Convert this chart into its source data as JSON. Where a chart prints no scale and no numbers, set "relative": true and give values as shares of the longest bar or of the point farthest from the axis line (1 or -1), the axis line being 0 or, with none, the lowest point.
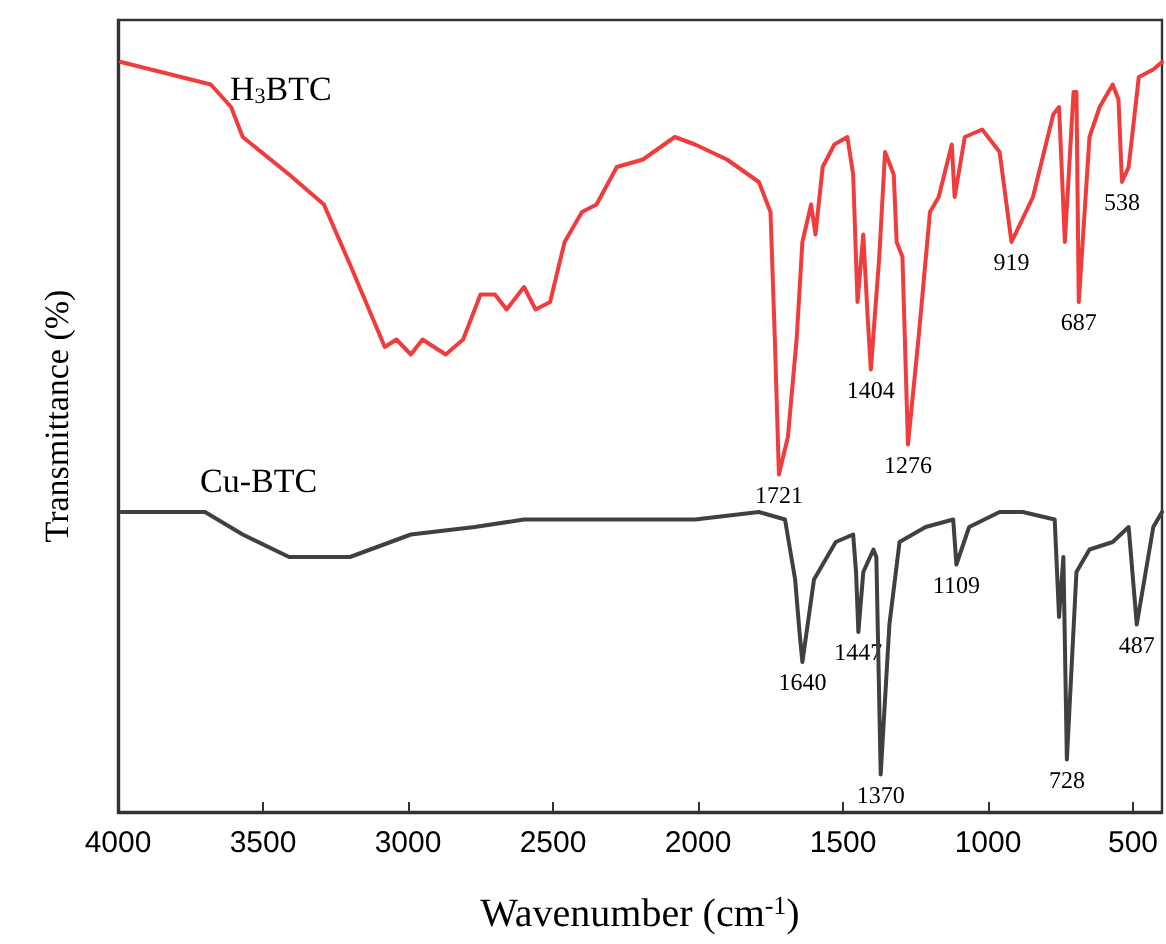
{
  "chart_data": {
    "type": "line",
    "relative": true,
    "xlabel": "Wavenumber (cm$^{-1}$)",
    "ylabel": "Transmittance (%)",
    "xlim": [
      4000,
      400
    ],
    "xticks": [
      4000,
      3500,
      3000,
      2500,
      2000,
      1500,
      1000,
      500
    ],
    "grid": false,
    "legend": false,
    "marker": "none",
    "line_style": "solid",
    "series": [
      {
        "name": "H$_{3}$BTC",
        "color": "#f03c3c",
        "x": [
          3990,
          3680,
          3610,
          3570,
          3410,
          3290,
          3200,
          3080,
          3040,
          2990,
          2950,
          2870,
          2810,
          2750,
          2700,
          2660,
          2600,
          2560,
          2510,
          2460,
          2400,
          2350,
          2280,
          2190,
          2080,
          2010,
          1900,
          1790,
          1750,
          1735,
          1721,
          1690,
          1660,
          1640,
          1610,
          1595,
          1570,
          1530,
          1485,
          1465,
          1450,
          1430,
          1415,
          1404,
          1375,
          1355,
          1325,
          1315,
          1295,
          1276,
          1240,
          1200,
          1170,
          1125,
          1115,
          1080,
          1020,
          960,
          919,
          845,
          775,
          755,
          735,
          705,
          695,
          687,
          650,
          615,
          570,
          550,
          538,
          515,
          480,
          430,
          400
        ],
        "values": [
          1.0,
          0.97,
          0.94,
          0.9,
          0.85,
          0.81,
          0.73,
          0.62,
          0.63,
          0.61,
          0.63,
          0.61,
          0.63,
          0.69,
          0.69,
          0.67,
          0.7,
          0.67,
          0.68,
          0.76,
          0.8,
          0.81,
          0.86,
          0.87,
          0.9,
          0.89,
          0.87,
          0.84,
          0.8,
          0.63,
          0.45,
          0.5,
          0.63,
          0.76,
          0.81,
          0.77,
          0.86,
          0.89,
          0.9,
          0.85,
          0.68,
          0.77,
          0.66,
          0.59,
          0.74,
          0.88,
          0.85,
          0.76,
          0.74,
          0.49,
          0.63,
          0.8,
          0.82,
          0.89,
          0.82,
          0.9,
          0.91,
          0.88,
          0.76,
          0.82,
          0.93,
          0.94,
          0.76,
          0.96,
          0.96,
          0.68,
          0.9,
          0.94,
          0.97,
          0.95,
          0.84,
          0.86,
          0.98,
          0.99,
          1.0
        ]
      },
      {
        "name": "Cu-BTC",
        "color": "#404040",
        "x": [
          3990,
          3700,
          3570,
          3410,
          3200,
          2990,
          2770,
          2600,
          2240,
          2010,
          1790,
          1700,
          1665,
          1650,
          1640,
          1600,
          1525,
          1465,
          1455,
          1447,
          1430,
          1395,
          1385,
          1370,
          1340,
          1305,
          1215,
          1120,
          1109,
          1065,
          960,
          880,
          770,
          755,
          740,
          728,
          695,
          650,
          570,
          515,
          487,
          430,
          400
        ],
        "values": [
          0.4,
          0.4,
          0.37,
          0.34,
          0.34,
          0.37,
          0.38,
          0.39,
          0.39,
          0.39,
          0.4,
          0.39,
          0.31,
          0.24,
          0.2,
          0.31,
          0.36,
          0.37,
          0.32,
          0.24,
          0.32,
          0.35,
          0.34,
          0.05,
          0.25,
          0.36,
          0.38,
          0.39,
          0.33,
          0.38,
          0.4,
          0.4,
          0.39,
          0.26,
          0.34,
          0.07,
          0.32,
          0.35,
          0.36,
          0.38,
          0.25,
          0.38,
          0.4
        ]
      }
    ],
    "annotations": [
      {
        "text": "1721",
        "x": 1721,
        "y": 0.45
      },
      {
        "text": "1404",
        "x": 1404,
        "y": 0.59
      },
      {
        "text": "1276",
        "x": 1276,
        "y": 0.49
      },
      {
        "text": "919",
        "x": 919,
        "y": 0.76
      },
      {
        "text": "687",
        "x": 687,
        "y": 0.68
      },
      {
        "text": "538",
        "x": 538,
        "y": 0.84
      },
      {
        "text": "1640",
        "x": 1640,
        "y": 0.2
      },
      {
        "text": "1447",
        "x": 1447,
        "y": 0.24
      },
      {
        "text": "1370",
        "x": 1370,
        "y": 0.05
      },
      {
        "text": "1109",
        "x": 1109,
        "y": 0.33
      },
      {
        "text": "728",
        "x": 728,
        "y": 0.07
      },
      {
        "text": "487",
        "x": 487,
        "y": 0.25
      }
    ]
  }
}
